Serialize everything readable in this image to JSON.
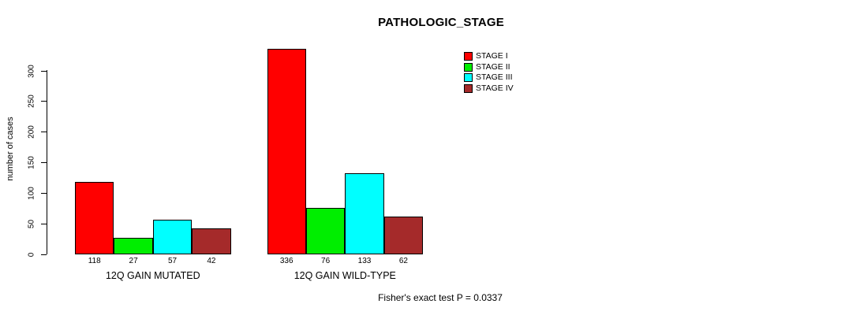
{
  "chart_data": {
    "type": "bar",
    "title": "PATHOLOGIC_STAGE",
    "ylabel": "number of cases",
    "xlabel": "",
    "ylim": [
      0,
      300
    ],
    "yticks": [
      0,
      50,
      100,
      150,
      200,
      250,
      300
    ],
    "grid": false,
    "legend_position": "top-right",
    "categories": [
      "12Q GAIN MUTATED",
      "12Q GAIN WILD-TYPE"
    ],
    "series": [
      {
        "name": "STAGE I",
        "color": "#ff0000",
        "values": [
          118,
          336
        ]
      },
      {
        "name": "STAGE II",
        "color": "#00ee00",
        "values": [
          27,
          76
        ]
      },
      {
        "name": "STAGE III",
        "color": "#00ffff",
        "values": [
          57,
          133
        ]
      },
      {
        "name": "STAGE IV",
        "color": "#a52a2a",
        "values": [
          42,
          62
        ]
      }
    ],
    "value_labels": {
      "12Q GAIN MUTATED": [
        118,
        27,
        57,
        42
      ],
      "12Q GAIN WILD-TYPE": [
        336,
        76,
        133,
        62
      ]
    },
    "footnote": "Fisher's exact test P = 0.0337"
  }
}
